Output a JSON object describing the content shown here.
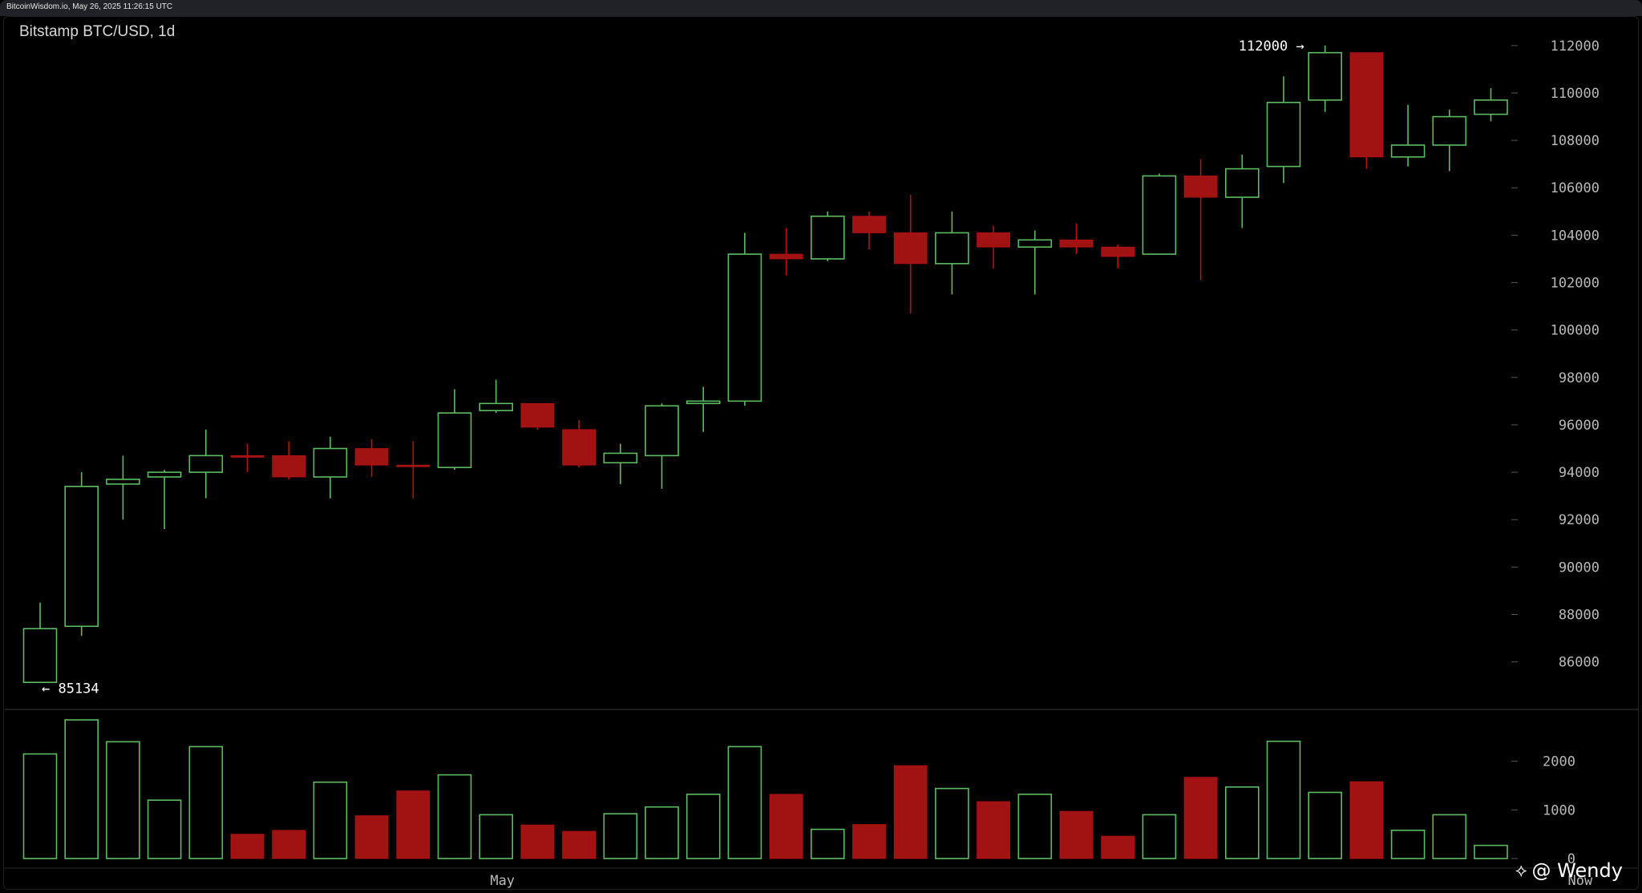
{
  "header": {
    "source_text": "BitcoinWisdom.io, May 26, 2025 11:26:15 UTC"
  },
  "colors": {
    "up": "#5dbb63",
    "down": "#b31212",
    "down_fill": "#a11313",
    "axis_text": "#b8b8b8",
    "background": "#000000"
  },
  "watermark": {
    "logo_icon": "binance-square-icon",
    "text": "@ Wendy"
  },
  "chart_data": {
    "type": "candlestick",
    "title": "Bitstamp BTC/USD, 1d",
    "price_axis": {
      "ticks": [
        86000,
        88000,
        90000,
        92000,
        94000,
        96000,
        98000,
        100000,
        102000,
        104000,
        106000,
        108000,
        110000,
        112000
      ],
      "ylim": [
        84500,
        112400
      ]
    },
    "volume_axis": {
      "ticks": [
        0,
        1000,
        2000
      ],
      "ylim": [
        0,
        2900
      ]
    },
    "x_labels": [
      {
        "index": 11,
        "label": "May"
      },
      {
        "index": 37,
        "label": "Now"
      }
    ],
    "annotations": {
      "high": {
        "index": 31,
        "value": 112000,
        "label": "112000 →"
      },
      "low": {
        "index": 0,
        "value": 85134,
        "label": "← 85134"
      }
    },
    "candles": [
      {
        "open": 85134,
        "high": 88500,
        "low": 85134,
        "close": 87400,
        "volume": 2150
      },
      {
        "open": 87500,
        "high": 94000,
        "low": 87100,
        "close": 93400,
        "volume": 2850
      },
      {
        "open": 93500,
        "high": 94700,
        "low": 92000,
        "close": 93700,
        "volume": 2400
      },
      {
        "open": 93800,
        "high": 94100,
        "low": 91600,
        "close": 94000,
        "volume": 1200
      },
      {
        "open": 94000,
        "high": 95800,
        "low": 92900,
        "close": 94700,
        "volume": 2300
      },
      {
        "open": 94700,
        "high": 95200,
        "low": 94000,
        "close": 94650,
        "volume": 500
      },
      {
        "open": 94700,
        "high": 95300,
        "low": 93700,
        "close": 93800,
        "volume": 580
      },
      {
        "open": 93800,
        "high": 95500,
        "low": 92900,
        "close": 95000,
        "volume": 1570
      },
      {
        "open": 95000,
        "high": 95400,
        "low": 93800,
        "close": 94300,
        "volume": 880
      },
      {
        "open": 94300,
        "high": 95300,
        "low": 92900,
        "close": 94250,
        "volume": 1390
      },
      {
        "open": 94200,
        "high": 97500,
        "low": 94100,
        "close": 96500,
        "volume": 1720
      },
      {
        "open": 96600,
        "high": 97900,
        "low": 96500,
        "close": 96900,
        "volume": 900
      },
      {
        "open": 96900,
        "high": 96900,
        "low": 95800,
        "close": 95900,
        "volume": 690
      },
      {
        "open": 95800,
        "high": 96200,
        "low": 94200,
        "close": 94300,
        "volume": 560
      },
      {
        "open": 94400,
        "high": 95200,
        "low": 93500,
        "close": 94800,
        "volume": 920
      },
      {
        "open": 94700,
        "high": 96900,
        "low": 93300,
        "close": 96800,
        "volume": 1060
      },
      {
        "open": 96900,
        "high": 97600,
        "low": 95700,
        "close": 97000,
        "volume": 1320
      },
      {
        "open": 97000,
        "high": 104100,
        "low": 96800,
        "close": 103200,
        "volume": 2300
      },
      {
        "open": 103200,
        "high": 104300,
        "low": 102300,
        "close": 103000,
        "volume": 1320
      },
      {
        "open": 103000,
        "high": 105000,
        "low": 102900,
        "close": 104800,
        "volume": 600
      },
      {
        "open": 104800,
        "high": 105000,
        "low": 103400,
        "close": 104100,
        "volume": 700
      },
      {
        "open": 104100,
        "high": 105700,
        "low": 100700,
        "close": 102800,
        "volume": 1910
      },
      {
        "open": 102800,
        "high": 105000,
        "low": 101500,
        "close": 104100,
        "volume": 1440
      },
      {
        "open": 104100,
        "high": 104400,
        "low": 102600,
        "close": 103500,
        "volume": 1170
      },
      {
        "open": 103500,
        "high": 104200,
        "low": 101500,
        "close": 103800,
        "volume": 1320
      },
      {
        "open": 103800,
        "high": 104500,
        "low": 103200,
        "close": 103500,
        "volume": 970
      },
      {
        "open": 103500,
        "high": 103600,
        "low": 102600,
        "close": 103100,
        "volume": 460
      },
      {
        "open": 103200,
        "high": 106600,
        "low": 103200,
        "close": 106500,
        "volume": 900
      },
      {
        "open": 106500,
        "high": 107200,
        "low": 102100,
        "close": 105600,
        "volume": 1670
      },
      {
        "open": 105600,
        "high": 107400,
        "low": 104300,
        "close": 106800,
        "volume": 1470
      },
      {
        "open": 106900,
        "high": 110700,
        "low": 106200,
        "close": 109600,
        "volume": 2410
      },
      {
        "open": 109700,
        "high": 112000,
        "low": 109200,
        "close": 111700,
        "volume": 1360
      },
      {
        "open": 111700,
        "high": 111700,
        "low": 106800,
        "close": 107300,
        "volume": 1580
      },
      {
        "open": 107300,
        "high": 109500,
        "low": 106900,
        "close": 107800,
        "volume": 580
      },
      {
        "open": 107800,
        "high": 109300,
        "low": 106700,
        "close": 109000,
        "volume": 900
      },
      {
        "open": 109100,
        "high": 110200,
        "low": 108800,
        "close": 109700,
        "volume": 270
      }
    ]
  }
}
